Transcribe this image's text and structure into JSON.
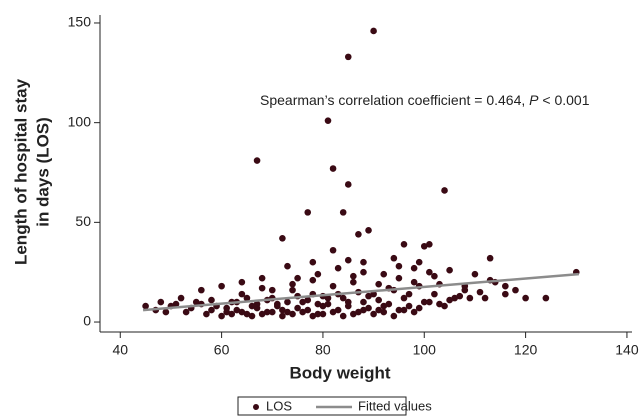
{
  "chart_data": {
    "type": "scatter",
    "x_label": "Body weight",
    "y_label": [
      "Length of hospital stay",
      "in days (LOS)"
    ],
    "annotation": {
      "text": "Spearman’s correlation coefficient = 0.464, ",
      "italic": "P",
      "rest": " < 0.001"
    },
    "xlim": [
      36,
      141
    ],
    "ylim": [
      -5,
      154
    ],
    "xticks": [
      40,
      60,
      80,
      100,
      120,
      140
    ],
    "yticks": [
      0,
      50,
      100,
      150
    ],
    "grid": false,
    "legend": "bottom",
    "series": [
      {
        "name": "LOS",
        "color": "#3a0a14",
        "mode": "markers",
        "x": [
          90,
          85,
          81,
          67,
          82,
          85,
          104,
          77,
          84,
          87,
          72,
          89,
          82,
          100,
          101,
          96,
          113,
          88,
          94,
          78,
          85,
          73,
          92,
          98,
          105,
          110,
          68,
          60,
          56,
          48,
          45,
          50,
          52,
          55,
          58,
          62,
          64,
          66,
          70,
          72,
          74,
          76,
          78,
          80,
          82,
          84,
          86,
          88,
          90,
          92,
          94,
          96,
          98,
          100,
          102,
          104,
          106,
          108,
          112,
          114,
          116,
          118,
          120,
          124,
          130,
          113,
          116,
          47,
          49,
          51,
          53,
          54,
          57,
          59,
          61,
          63,
          65,
          67,
          69,
          71,
          73,
          75,
          77,
          79,
          81,
          83,
          85,
          87,
          89,
          91,
          93,
          95,
          97,
          99,
          101,
          103,
          105,
          107,
          109,
          111,
          60,
          62,
          64,
          66,
          68,
          70,
          72,
          74,
          76,
          78,
          80,
          82,
          84,
          86,
          88,
          90,
          92,
          94,
          96,
          98,
          56,
          58,
          61,
          63,
          65,
          67,
          69,
          71,
          73,
          75,
          77,
          79,
          81,
          83,
          85,
          87,
          89,
          91,
          93,
          95,
          97,
          99,
          101,
          103,
          64,
          68,
          75,
          79,
          83,
          88,
          70,
          74,
          78,
          80,
          86,
          91,
          95,
          99,
          102,
          108
        ],
        "y": [
          146,
          133,
          101,
          81,
          77,
          69,
          66,
          55,
          55,
          44,
          42,
          46,
          36,
          38,
          39,
          39,
          32,
          30,
          32,
          30,
          31,
          28,
          24,
          27,
          26,
          24,
          22,
          18,
          16,
          10,
          8,
          8,
          12,
          10,
          6,
          10,
          14,
          8,
          12,
          6,
          16,
          10,
          14,
          8,
          18,
          12,
          20,
          10,
          14,
          8,
          16,
          12,
          20,
          10,
          14,
          8,
          12,
          16,
          12,
          20,
          14,
          16,
          12,
          12,
          25,
          21,
          18,
          6,
          5,
          9,
          5,
          7,
          4,
          8,
          5,
          6,
          4,
          7,
          5,
          9,
          5,
          7,
          6,
          4,
          9,
          6,
          8,
          5,
          7,
          6,
          9,
          6,
          8,
          7,
          10,
          9,
          11,
          13,
          12,
          15,
          3,
          4,
          5,
          3,
          4,
          5,
          3,
          4,
          5,
          3,
          4,
          5,
          3,
          4,
          6,
          4,
          5,
          3,
          6,
          5,
          9,
          11,
          7,
          10,
          12,
          9,
          11,
          8,
          10,
          13,
          11,
          9,
          12,
          14,
          10,
          15,
          13,
          11,
          17,
          22,
          14,
          18,
          25,
          19,
          20,
          17,
          22,
          24,
          27,
          25,
          16,
          19,
          21,
          13,
          23,
          19,
          28,
          30,
          23,
          18
        ]
      },
      {
        "name": "Fitted values",
        "color": "#8c8c8c",
        "mode": "line",
        "x": [
          44.5,
          130.5
        ],
        "y": [
          6,
          24
        ]
      }
    ]
  }
}
